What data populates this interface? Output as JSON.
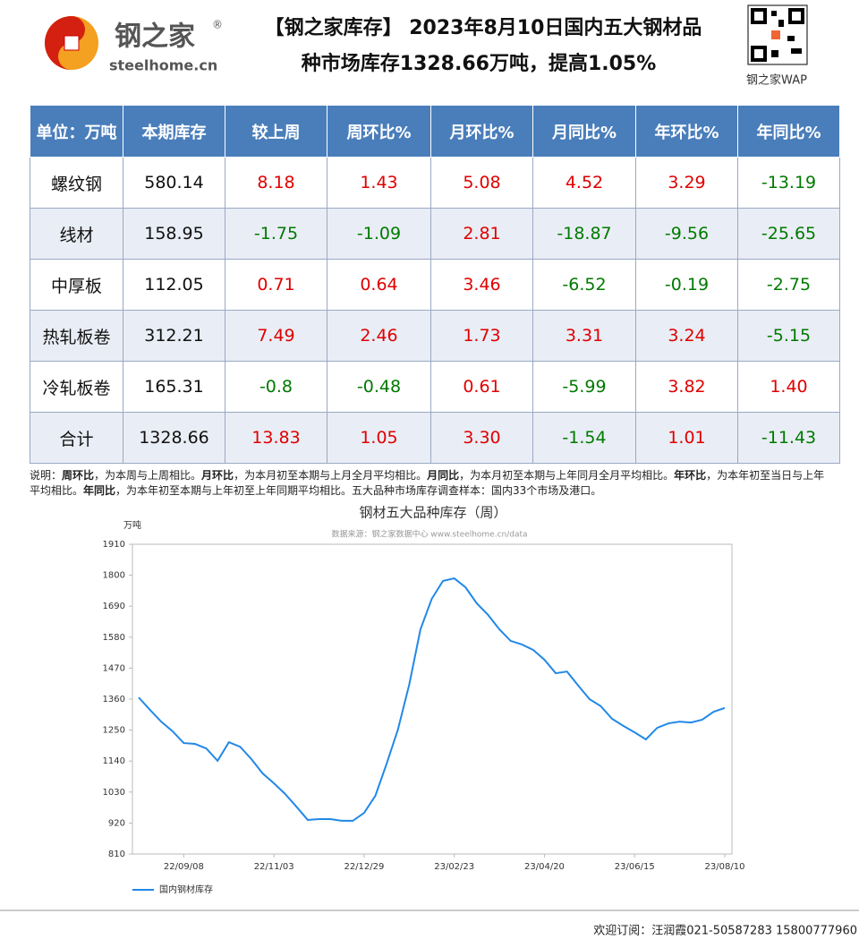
{
  "header": {
    "logo_name": "钢之家",
    "logo_mark": "®",
    "logo_site": "steelhome.cn",
    "title_line1": "【钢之家库存】 2023年8月10日国内五大钢材品",
    "title_line2": "种市场库存1328.66万吨，提高1.05%",
    "qr_caption": "钢之家WAP"
  },
  "table": {
    "header": [
      "单位：万吨",
      "本期库存",
      "较上周",
      "周环比%",
      "月环比%",
      "月同比%",
      "年环比%",
      "年同比%"
    ],
    "rows": [
      [
        "螺纹钢",
        "580.14",
        "8.18",
        "1.43",
        "5.08",
        "4.52",
        "3.29",
        "-13.19"
      ],
      [
        "线材",
        "158.95",
        "-1.75",
        "-1.09",
        "2.81",
        "-18.87",
        "-9.56",
        "-25.65"
      ],
      [
        "中厚板",
        "112.05",
        "0.71",
        "0.64",
        "3.46",
        "-6.52",
        "-0.19",
        "-2.75"
      ],
      [
        "热轧板卷",
        "312.21",
        "7.49",
        "2.46",
        "1.73",
        "3.31",
        "3.24",
        "-5.15"
      ],
      [
        "冷轧板卷",
        "165.31",
        "-0.8",
        "-0.48",
        "0.61",
        "-5.99",
        "3.82",
        "1.40"
      ],
      [
        "合计",
        "1328.66",
        "13.83",
        "1.05",
        "3.30",
        "-1.54",
        "1.01",
        "-11.43"
      ]
    ],
    "positive_color": "#e00000",
    "negative_color": "#007a00"
  },
  "note": [
    {
      "text": "说明：",
      "bold": false
    },
    {
      "text": "周环比",
      "bold": true
    },
    {
      "text": "，为本周与上周相比。",
      "bold": false
    },
    {
      "text": "月环比",
      "bold": true
    },
    {
      "text": "，为本月初至本期与上月全月平均相比。",
      "bold": false
    },
    {
      "text": "月同比",
      "bold": true
    },
    {
      "text": "，为本月初至本期与上年同月全月平均相比。",
      "bold": false
    },
    {
      "text": "年环比",
      "bold": true
    },
    {
      "text": "，为本年初至当日与上年平均相比。",
      "bold": false
    },
    {
      "text": "年同比",
      "bold": true
    },
    {
      "text": "，为本年初至本期与上年初至上年同期平均相比。五大品种市场库存调查样本：国内33个市场及港口。",
      "bold": false
    }
  ],
  "chart_data": {
    "type": "line",
    "title": "钢材五大品种库存（周）",
    "subtitle": "数据来源：钢之家数据中心 www.steelhome.cn/data",
    "y_label": "万吨",
    "categories": [
      null,
      null,
      null,
      null,
      "22/09/08",
      null,
      null,
      null,
      null,
      null,
      null,
      null,
      "22/11/03",
      null,
      null,
      null,
      null,
      null,
      null,
      null,
      "22/12/29",
      null,
      null,
      null,
      null,
      null,
      null,
      null,
      "23/02/23",
      null,
      null,
      null,
      null,
      null,
      null,
      null,
      "23/04/20",
      null,
      null,
      null,
      null,
      null,
      null,
      null,
      "23/06/15",
      null,
      null,
      null,
      null,
      null,
      null,
      null,
      "23/08/10"
    ],
    "series": [
      {
        "name": "国内钢材库存",
        "color": "#2188e8",
        "values": [
          1366,
          1322,
          1280,
          1246,
          1204,
          1201,
          1185,
          1141,
          1207,
          1191,
          1147,
          1096,
          1061,
          1023,
          978,
          931,
          934,
          934,
          928,
          928,
          956,
          1017,
          1131,
          1252,
          1411,
          1608,
          1716,
          1780,
          1789,
          1757,
          1700,
          1659,
          1608,
          1567,
          1554,
          1535,
          1500,
          1452,
          1458,
          1408,
          1360,
          1335,
          1290,
          1265,
          1242,
          1217,
          1258,
          1274,
          1280,
          1277,
          1287,
          1315,
          1328.66
        ]
      }
    ],
    "ylim": [
      810,
      1910
    ],
    "yticks": [
      810,
      920,
      1030,
      1140,
      1250,
      1360,
      1470,
      1580,
      1690,
      1800,
      1910
    ],
    "grid": false,
    "legend": "bottom-left"
  },
  "footer": {
    "text": "欢迎订阅：汪润霞021-50587283 15800777960"
  }
}
